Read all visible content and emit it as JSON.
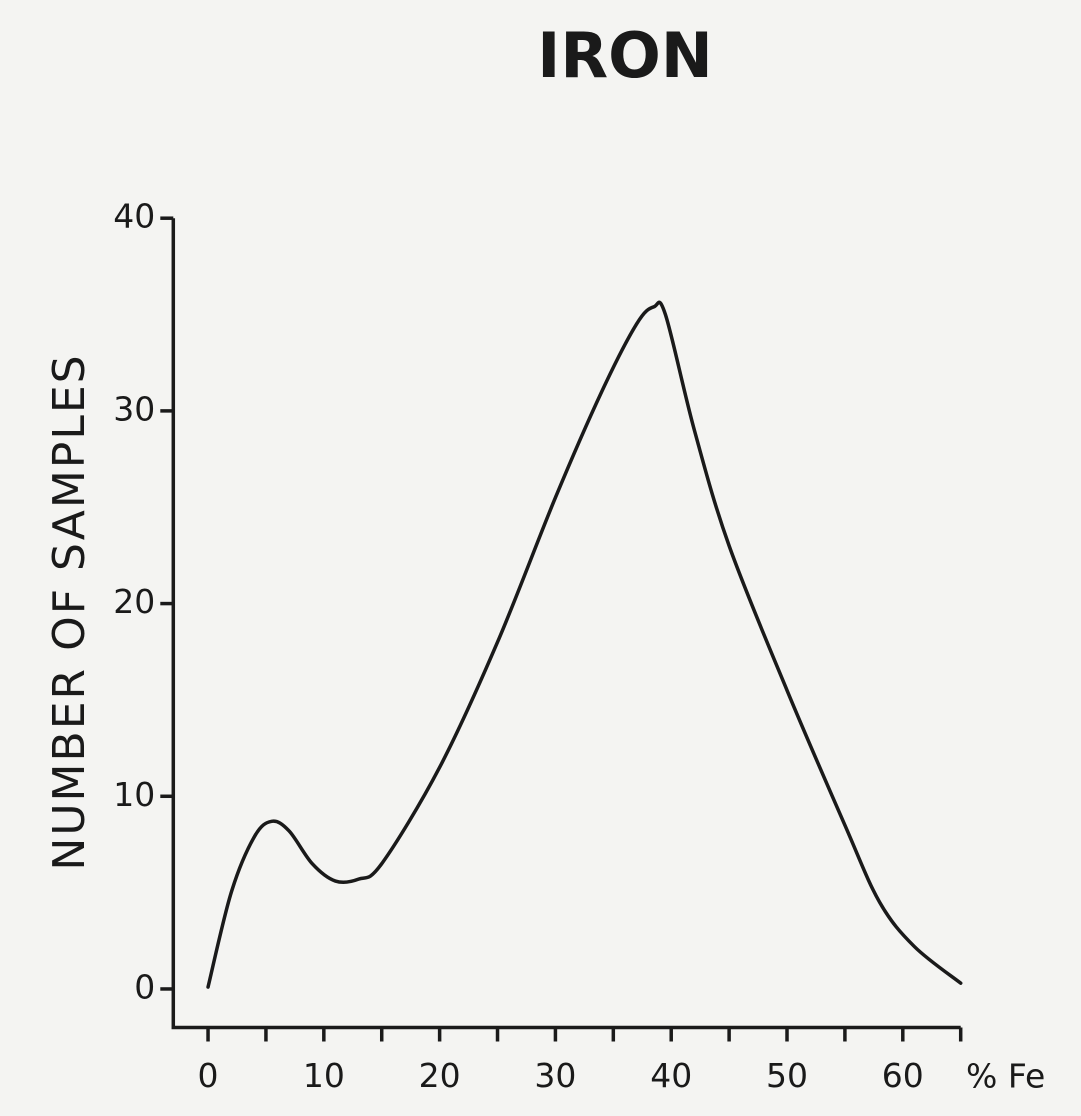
{
  "chart_data": {
    "type": "line",
    "title": "IRON",
    "y_label": "NUMBER OF SAMPLES",
    "x_label": "% Fe",
    "xlim": [
      -3,
      65
    ],
    "ylim": [
      -2,
      40
    ],
    "xticks": [
      0,
      10,
      20,
      30,
      40,
      50,
      60
    ],
    "xminorticks": [
      5,
      15,
      25,
      35,
      45,
      55,
      65
    ],
    "yticks": [
      0,
      10,
      20,
      30,
      40
    ],
    "grid": false,
    "series": [
      {
        "color": "#1a1a1a",
        "x": [
          0,
          2,
          4,
          5.5,
          7,
          9,
          11,
          13,
          15,
          20,
          25,
          30,
          34,
          37,
          38.5,
          39.5,
          42,
          45,
          50,
          55,
          58,
          61,
          65
        ],
        "values": [
          0.1,
          5,
          7.9,
          8.7,
          8.2,
          6.5,
          5.6,
          5.7,
          6.5,
          11.5,
          18,
          25.5,
          31,
          34.5,
          35.4,
          35,
          29,
          23,
          15.5,
          8.5,
          4.5,
          2.2,
          0.3
        ]
      }
    ]
  }
}
